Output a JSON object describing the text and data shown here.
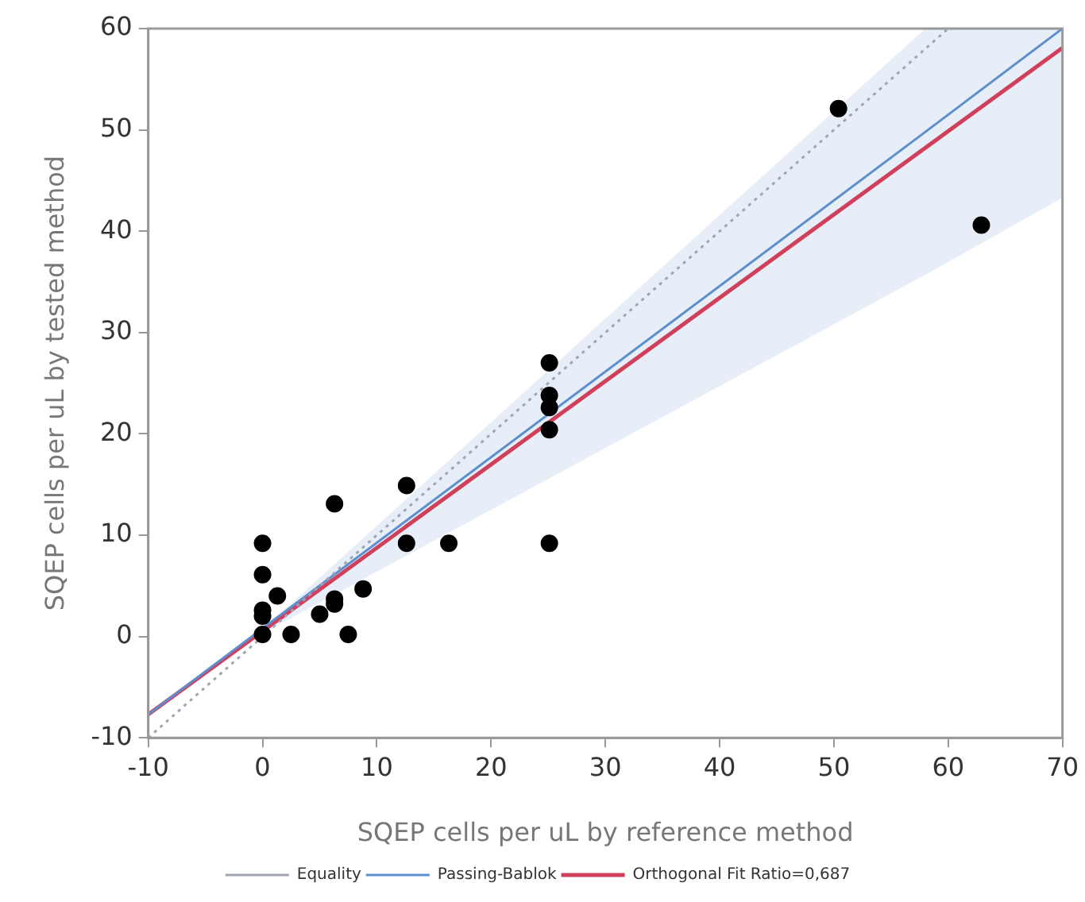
{
  "chart_data": {
    "type": "scatter",
    "xlabel": "SQEP cells per uL by reference method",
    "ylabel": "SQEP cells per uL by tested method",
    "xlim": [
      -10,
      70
    ],
    "xticks": [
      -10,
      0,
      10,
      20,
      30,
      40,
      50,
      60,
      70
    ],
    "ylim": [
      -10,
      60
    ],
    "yticks": [
      -10,
      0,
      10,
      20,
      30,
      40,
      50,
      60
    ],
    "grid": false,
    "legend": "bottom",
    "series": [
      {
        "color": "#000000",
        "marker": "circle",
        "x": [
          0,
          0,
          1.3,
          0,
          0,
          0,
          2.5,
          5.0,
          6.3,
          6.3,
          6.3,
          7.5,
          8.8,
          12.6,
          12.6,
          16.3,
          25.1,
          25.1,
          25.1,
          25.1,
          25.1,
          50.4,
          62.9
        ],
        "values": [
          9.2,
          6.1,
          4.0,
          2.6,
          2.0,
          0.2,
          0.2,
          2.2,
          13.1,
          3.7,
          3.2,
          0.2,
          4.7,
          14.9,
          9.2,
          9.2,
          27.0,
          23.8,
          22.6,
          20.4,
          9.2,
          52.1,
          40.6
        ]
      },
      {
        "type": "line",
        "name": "Equality",
        "color": "#a0a4b4",
        "line_style": "dotted",
        "marker": "none",
        "x": [
          -10,
          60
        ],
        "values": [
          -10,
          60
        ]
      },
      {
        "type": "line",
        "name": "Passing-Bablok",
        "color": "#5b8fd0",
        "line_style": "solid",
        "marker": "none",
        "x": [
          -10,
          0,
          58,
          70
        ],
        "values": [
          -7.7,
          0.8,
          49.8,
          60
        ],
        "lower": [
          -7.7,
          0.3,
          35.7,
          43.3
        ],
        "upper": [
          -7.7,
          0.7,
          60,
          60
        ]
      },
      {
        "type": "line",
        "name": "Orthogonal Fit Ratio=0,687",
        "color": "#d0405a",
        "line_style": "solid",
        "marker": "none",
        "x": [
          -10,
          70
        ],
        "values": [
          -7.7,
          58.1
        ]
      }
    ]
  }
}
